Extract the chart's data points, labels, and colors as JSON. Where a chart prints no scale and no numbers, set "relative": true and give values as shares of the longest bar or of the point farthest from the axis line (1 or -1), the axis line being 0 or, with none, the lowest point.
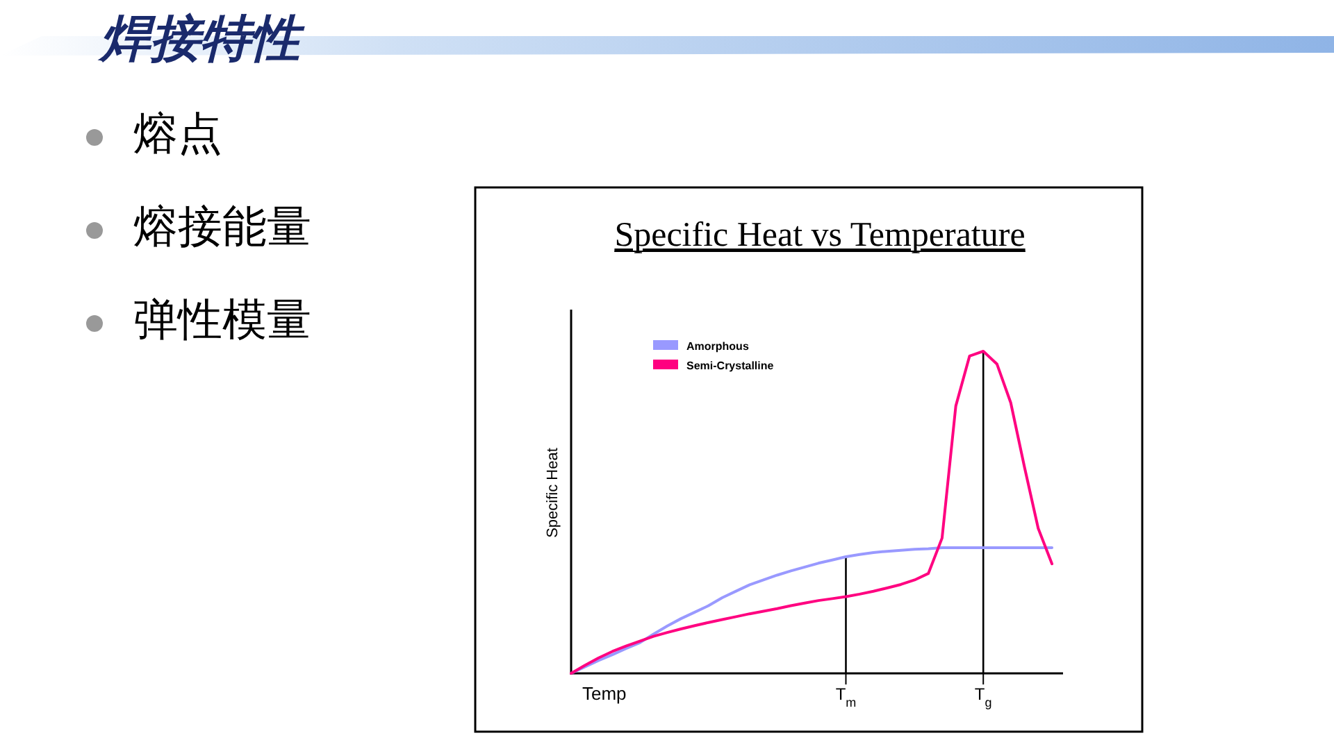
{
  "chart_data": [
    {
      "type": "other",
      "title": "焊接特性",
      "annotations": [
        "熔点",
        "熔接能量",
        "弹性模量"
      ]
    },
    {
      "type": "line",
      "title": "Specific Heat vs Temperature",
      "xlabel": "Temp",
      "ylabel": "Specific Heat",
      "relative": true,
      "legend": "top left",
      "grid": false,
      "categories": [
        null,
        null,
        null,
        null,
        null,
        null,
        null,
        null,
        null,
        null,
        null,
        null,
        null,
        null,
        null,
        null,
        null,
        null,
        null,
        null,
        "T$_{m}$",
        null,
        null,
        null,
        null,
        null,
        null,
        null,
        null,
        null,
        "T$_{g}$",
        null,
        null,
        null,
        null,
        null
      ],
      "series": [
        {
          "name": "Amorphous",
          "color": "#9999ff",
          "values": [
            0,
            0.02,
            0.04,
            0.058,
            0.077,
            0.095,
            0.122,
            0.147,
            0.17,
            0.19,
            0.21,
            0.235,
            0.255,
            0.275,
            0.29,
            0.305,
            0.318,
            0.33,
            0.342,
            0.352,
            0.362,
            0.369,
            0.375,
            0.379,
            0.382,
            0.385,
            0.387,
            0.39,
            0.39,
            0.39,
            0.39,
            0.39,
            0.39,
            0.39,
            0.39,
            0.39
          ]
        },
        {
          "name": "Semi-Crystalline",
          "color": "#ff0080",
          "values": [
            0,
            0.025,
            0.048,
            0.068,
            0.085,
            0.1,
            0.115,
            0.127,
            0.138,
            0.148,
            0.158,
            0.167,
            0.176,
            0.185,
            0.193,
            0.201,
            0.21,
            0.218,
            0.226,
            0.232,
            0.238,
            0.246,
            0.255,
            0.265,
            0.276,
            0.29,
            0.31,
            0.42,
            0.83,
            0.985,
            1,
            0.96,
            0.84,
            0.64,
            0.45,
            0.34
          ]
        }
      ],
      "ref_lines": [
        {
          "axis": "x",
          "value": "T$_{m}$",
          "color": "#000000"
        },
        {
          "axis": "x",
          "value": "T$_{g}$",
          "color": "#000000"
        }
      ]
    }
  ]
}
